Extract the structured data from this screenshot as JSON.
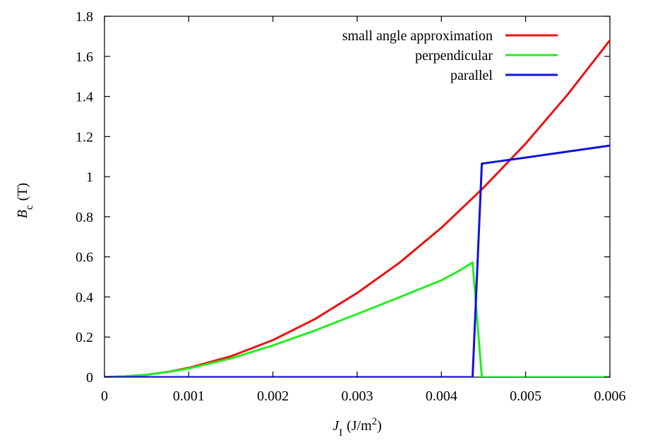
{
  "chart_data": {
    "type": "line",
    "title": "",
    "xlabel": {
      "symbol": "J",
      "subscript": "I",
      "unit_pre": "(J/m",
      "unit_sup": "2",
      "unit_post": ")"
    },
    "ylabel": {
      "symbol": "B",
      "subscript": "c",
      "unit": "(T)"
    },
    "xlim": [
      0,
      0.006
    ],
    "ylim": [
      0,
      1.8
    ],
    "xticks": [
      0,
      0.001,
      0.002,
      0.003,
      0.004,
      0.005,
      0.006
    ],
    "xtick_labels": [
      "0",
      "0.001",
      "0.002",
      "0.003",
      "0.004",
      "0.005",
      "0.006"
    ],
    "yticks": [
      0,
      0.2,
      0.4,
      0.6,
      0.8,
      1,
      1.2,
      1.4,
      1.6,
      1.8
    ],
    "ytick_labels": [
      "0",
      "0.2",
      "0.4",
      "0.6",
      "0.8",
      "1",
      "1.2",
      "1.4",
      "1.6",
      "1.8"
    ],
    "grid": false,
    "legend_position": "top-right",
    "series": [
      {
        "name": "small angle approximation",
        "color": "#ee1111",
        "x": [
          0,
          0.00025,
          0.0005,
          0.00075,
          0.001,
          0.0015,
          0.002,
          0.0025,
          0.003,
          0.0035,
          0.004,
          0.0045,
          0.005,
          0.0055,
          0.006
        ],
        "y": [
          0,
          0.004,
          0.012,
          0.026,
          0.046,
          0.104,
          0.185,
          0.29,
          0.42,
          0.57,
          0.745,
          0.945,
          1.165,
          1.41,
          1.68
        ]
      },
      {
        "name": "perpendicular",
        "color": "#22ee22",
        "x": [
          0,
          0.00025,
          0.0005,
          0.00075,
          0.001,
          0.0015,
          0.002,
          0.0025,
          0.003,
          0.0035,
          0.004,
          0.0042,
          0.00437,
          0.00448,
          0.0045,
          0.005,
          0.006
        ],
        "y": [
          0,
          0.004,
          0.012,
          0.025,
          0.043,
          0.093,
          0.158,
          0.233,
          0.315,
          0.398,
          0.483,
          0.528,
          0.572,
          0.0,
          0.0,
          0.0,
          0.0
        ]
      },
      {
        "name": "parallel",
        "color": "#1111dd",
        "x": [
          0,
          0.001,
          0.002,
          0.003,
          0.004,
          0.00437,
          0.00448,
          0.005,
          0.0055,
          0.006
        ],
        "y": [
          0,
          0,
          0,
          0,
          0,
          0,
          1.065,
          1.095,
          1.125,
          1.155
        ]
      }
    ]
  }
}
